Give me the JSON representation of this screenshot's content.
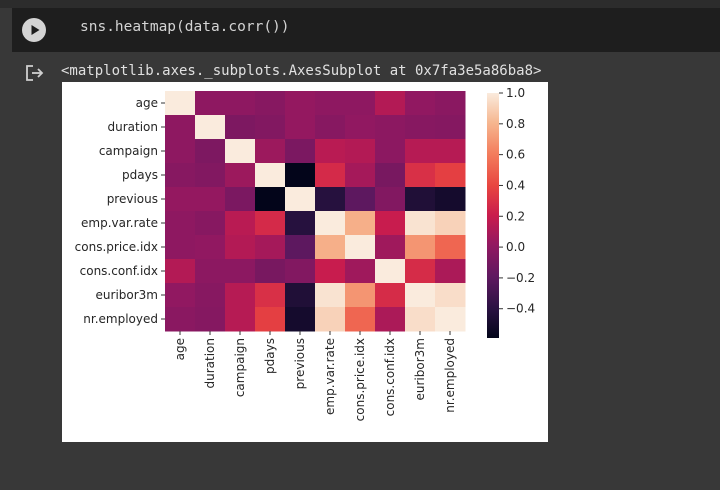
{
  "cell": {
    "code": "sns.heatmap(data.corr())",
    "output_text": "<matplotlib.axes._subplots.AxesSubplot at 0x7fa3e5a86ba8>",
    "run_icon": "play-icon",
    "output_icon": "output-arrow-icon"
  },
  "chart_data": {
    "type": "heatmap",
    "title": "",
    "xlabel": "",
    "ylabel": "",
    "labels": [
      "age",
      "duration",
      "campaign",
      "pdays",
      "previous",
      "emp.var.rate",
      "cons.price.idx",
      "cons.conf.idx",
      "euribor3m",
      "nr.employed"
    ],
    "matrix": [
      [
        1.0,
        0.0,
        0.0,
        -0.03,
        0.02,
        0.0,
        0.0,
        0.13,
        0.01,
        -0.02
      ],
      [
        0.0,
        1.0,
        -0.07,
        -0.05,
        0.02,
        -0.03,
        0.01,
        -0.01,
        -0.03,
        -0.04
      ],
      [
        0.0,
        -0.07,
        1.0,
        0.05,
        -0.08,
        0.15,
        0.13,
        -0.01,
        0.14,
        0.14
      ],
      [
        -0.03,
        -0.05,
        0.05,
        1.0,
        -0.59,
        0.27,
        0.08,
        -0.09,
        0.3,
        0.37
      ],
      [
        0.02,
        0.02,
        -0.08,
        -0.59,
        1.0,
        -0.42,
        -0.2,
        -0.05,
        -0.45,
        -0.5
      ],
      [
        0.0,
        -0.03,
        0.15,
        0.27,
        -0.42,
        1.0,
        0.78,
        0.2,
        0.97,
        0.91
      ],
      [
        0.0,
        0.01,
        0.13,
        0.08,
        -0.2,
        0.78,
        1.0,
        0.06,
        0.69,
        0.52
      ],
      [
        0.13,
        -0.01,
        -0.01,
        -0.09,
        -0.05,
        0.2,
        0.06,
        1.0,
        0.28,
        0.1
      ],
      [
        0.01,
        -0.03,
        0.14,
        0.3,
        -0.45,
        0.97,
        0.69,
        0.28,
        1.0,
        0.95
      ],
      [
        -0.02,
        -0.04,
        0.14,
        0.37,
        -0.5,
        0.91,
        0.52,
        0.1,
        0.95,
        1.0
      ]
    ],
    "vmin": -0.59,
    "vmax": 1.0,
    "colorbar_ticks": [
      "1.0",
      "0.8",
      "0.6",
      "0.4",
      "0.2",
      "0.0",
      "−0.2",
      "−0.4"
    ],
    "colorbar_values": [
      1.0,
      0.8,
      0.6,
      0.4,
      0.2,
      0.0,
      -0.2,
      -0.4
    ],
    "colormap": "rocket"
  }
}
